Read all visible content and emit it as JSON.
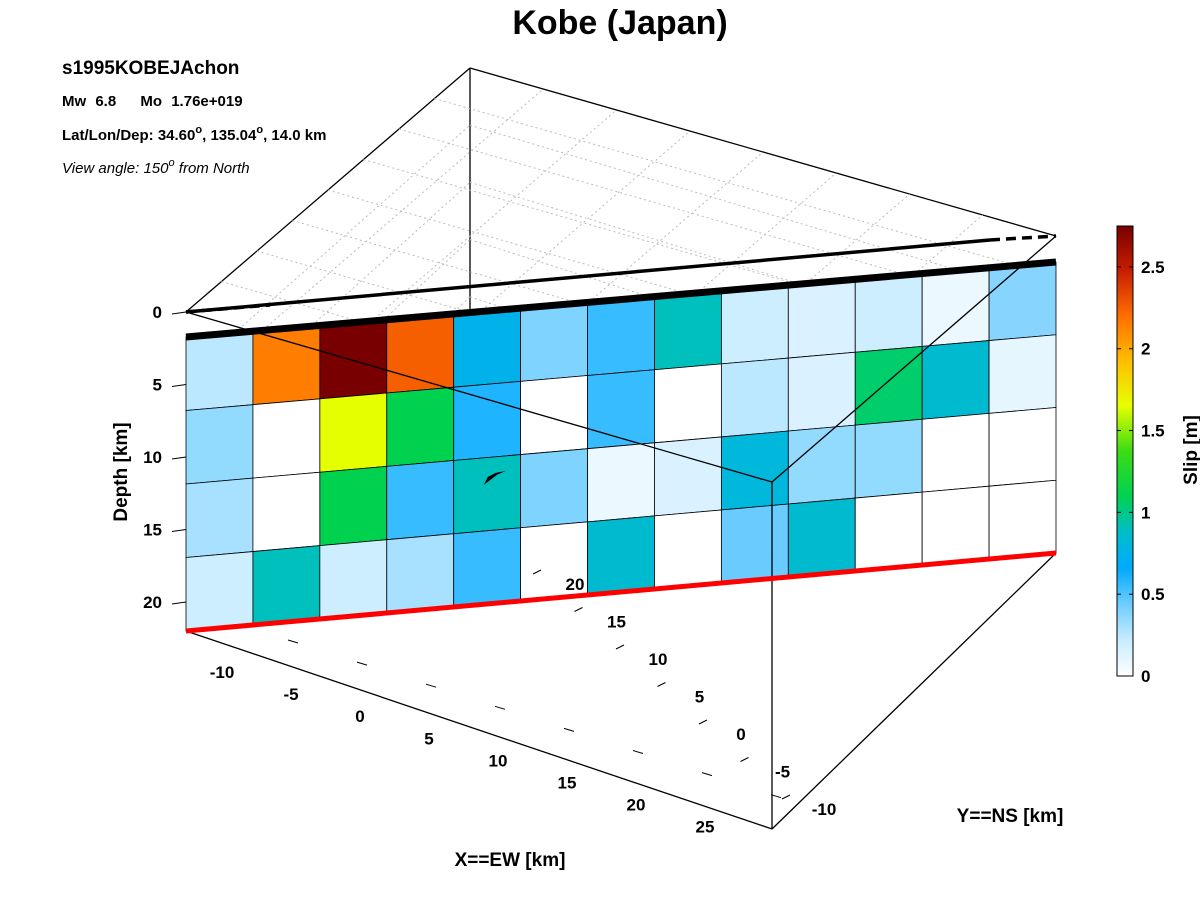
{
  "chart_data": {
    "type": "heatmap",
    "title": "Kobe (Japan)",
    "info": {
      "event_id": "s1995KOBEJAchon",
      "mw_label": "Mw",
      "mw": "6.8",
      "mo_label": "Mo",
      "mo": "1.76e+019",
      "location_prefix": "Lat/Lon/Dep: ",
      "lat": "34.60",
      "lon": "135.04",
      "dep_suffix": ", 14.0 km",
      "degree_symbol": "o",
      "view_prefix": "View angle: 150",
      "view_suffix": " from North"
    },
    "xlabel": "X==EW [km]",
    "ylabel": "Y==NS [km]",
    "zlabel": "Depth [km]",
    "colorbar_label": "Slip [m]",
    "x_ticks": [
      "-10",
      "-5",
      "0",
      "5",
      "10",
      "15",
      "20",
      "25"
    ],
    "y_ticks": [
      "-10",
      "-5",
      "0",
      "5",
      "10",
      "15",
      "20"
    ],
    "z_ticks": [
      "0",
      "5",
      "10",
      "15",
      "20"
    ],
    "colorbar_ticks": [
      "0",
      "0.5",
      "1",
      "1.5",
      "2",
      "2.5"
    ],
    "clim": [
      0,
      2.75
    ],
    "depth_range": [
      0,
      22
    ],
    "grid": true,
    "slip_rows": [
      [
        0.25,
        2.15,
        2.75,
        2.25,
        0.75,
        0.4,
        0.55,
        0.9,
        0.2,
        0.15,
        0.2,
        0.08,
        0.38
      ],
      [
        0.35,
        0.0,
        1.65,
        1.1,
        0.6,
        0.0,
        0.55,
        0.0,
        0.25,
        0.15,
        1.05,
        0.85,
        0.1
      ],
      [
        0.3,
        0.0,
        1.1,
        0.55,
        0.9,
        0.4,
        0.08,
        0.15,
        0.8,
        0.35,
        0.35,
        0.0,
        0.0
      ],
      [
        0.2,
        0.9,
        0.2,
        0.3,
        0.55,
        0.0,
        0.85,
        0.0,
        0.45,
        0.85,
        0.0,
        0.0,
        0.0
      ]
    ],
    "hypocenter": {
      "col": 4.6,
      "row": 2.3
    }
  }
}
